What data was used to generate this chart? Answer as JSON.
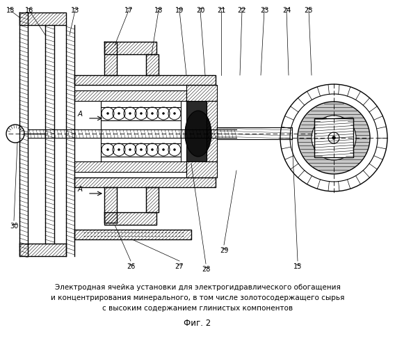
{
  "title_line1": "Электродная ячейка установки для электрогидравлического обогащения",
  "title_line2": "и концентрирования минерального, в том числе золотосодержащего сырья",
  "title_line3": "с высоким содержанием глинистых компонентов",
  "fig_label": "Фиг. 2",
  "bg_color": "#ffffff",
  "lc": "#000000",
  "top_labels": [
    [
      "15",
      15
    ],
    [
      "16",
      42
    ],
    [
      "13",
      108
    ],
    [
      "17",
      185
    ],
    [
      "18",
      228
    ],
    [
      "19",
      258
    ],
    [
      "20",
      288
    ],
    [
      "21",
      318
    ],
    [
      "22",
      348
    ],
    [
      "23",
      380
    ],
    [
      "24",
      412
    ],
    [
      "25",
      444
    ]
  ],
  "bot_labels": [
    [
      "30",
      20,
      320
    ],
    [
      "26",
      188,
      378
    ],
    [
      "27",
      258,
      378
    ],
    [
      "28",
      296,
      382
    ],
    [
      "29",
      322,
      355
    ],
    [
      "15",
      428,
      378
    ]
  ]
}
